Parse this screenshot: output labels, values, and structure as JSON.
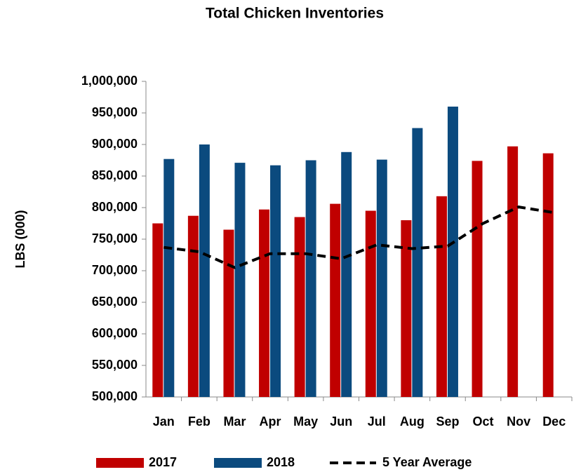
{
  "chart_data": {
    "type": "bar",
    "title": "Total Chicken Inventories",
    "y_label": "LBS (000)",
    "categories": [
      "Jan",
      "Feb",
      "Mar",
      "Apr",
      "May",
      "Jun",
      "Jul",
      "Aug",
      "Sep",
      "Oct",
      "Nov",
      "Dec"
    ],
    "series": [
      {
        "name": "2017",
        "color": "#c00000",
        "type": "bar",
        "values": [
          775000,
          787000,
          765000,
          797000,
          785000,
          806000,
          795000,
          780000,
          818000,
          874000,
          897000,
          886000
        ]
      },
      {
        "name": "2018",
        "color": "#0b4a7e",
        "type": "bar",
        "values": [
          877000,
          900000,
          871000,
          867000,
          875000,
          888000,
          876000,
          926000,
          960000,
          null,
          null,
          null
        ]
      },
      {
        "name": "5 Year Average",
        "color": "#000000",
        "type": "line",
        "dashed": true,
        "values": [
          737000,
          730000,
          705000,
          727000,
          727000,
          719000,
          741000,
          735000,
          739000,
          775000,
          801000,
          792000
        ]
      }
    ],
    "ylim": [
      500000,
      1000000
    ],
    "yticks": [
      {
        "value": 500000,
        "label": "500,000"
      },
      {
        "value": 550000,
        "label": "550,000"
      },
      {
        "value": 600000,
        "label": "600,000"
      },
      {
        "value": 650000,
        "label": "650,000"
      },
      {
        "value": 700000,
        "label": "700,000"
      },
      {
        "value": 750000,
        "label": "750,000"
      },
      {
        "value": 800000,
        "label": "800,000"
      },
      {
        "value": 850000,
        "label": "850,000"
      },
      {
        "value": 900000,
        "label": "900,000"
      },
      {
        "value": 950000,
        "label": "950,000"
      },
      {
        "value": 1000000,
        "label": "1,000,000"
      }
    ],
    "grid": false,
    "legend": "bottom"
  }
}
